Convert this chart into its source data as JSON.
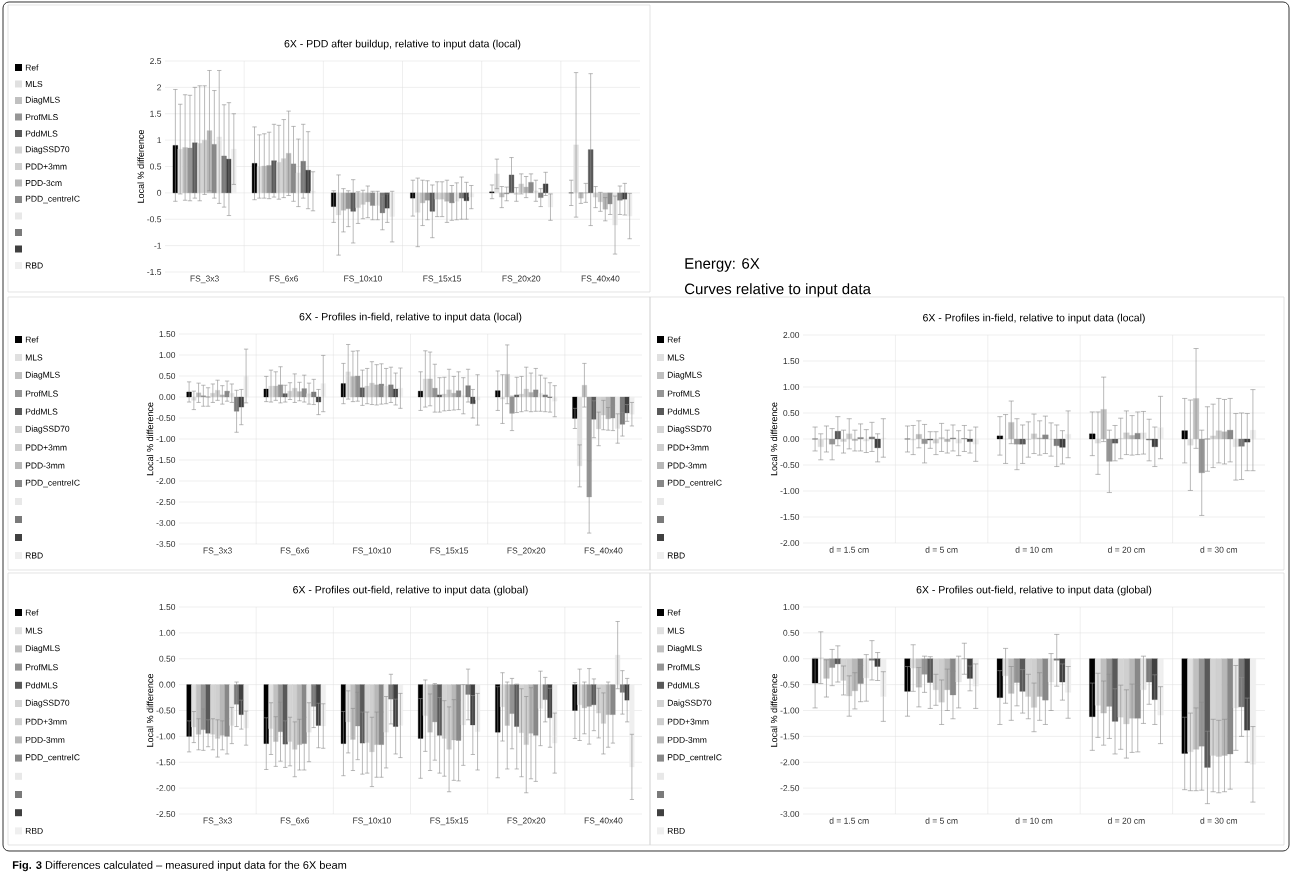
{
  "chart_data": [
    {
      "type": "bar",
      "title": "6X - PDD after buildup, relative to input data (local)",
      "ylabel": "Local % difference",
      "grid": true,
      "legend": "left",
      "categories": [
        "FS_3x3",
        "FS_6x6",
        "FS_10x10",
        "FS_15x15",
        "FS_20x20",
        "FS_40x40"
      ],
      "ylim": [
        -1.5,
        2.5
      ],
      "yticks": [
        -1.5,
        -1,
        -0.5,
        0,
        0.5,
        1,
        1.5,
        2,
        2.5
      ],
      "series": [
        {
          "name": "Ref",
          "color": "#000000",
          "values": [
            0.9,
            0.56,
            -0.26,
            -0.1,
            0.02,
            0.0
          ],
          "errors": [
            1.06,
            0.69,
            0.3,
            0.34,
            0.13,
            0.24
          ]
        },
        {
          "name": "MLS",
          "color": "#e0e0e0",
          "values": [
            0.83,
            0.5,
            -0.42,
            -0.37,
            0.36,
            0.91
          ],
          "errors": [
            0.85,
            0.6,
            0.76,
            0.65,
            0.28,
            1.37
          ]
        },
        {
          "name": "DiagMLS",
          "color": "#c0c0c0",
          "values": [
            0.86,
            0.51,
            -0.33,
            -0.19,
            -0.08,
            -0.1
          ],
          "errors": [
            1.0,
            0.61,
            0.41,
            0.43,
            0.2,
            0.1
          ]
        },
        {
          "name": "ProfMLS",
          "color": "#969696",
          "values": [
            0.85,
            0.52,
            -0.3,
            -0.14,
            -0.02,
            0.0
          ],
          "errors": [
            1.0,
            0.63,
            0.34,
            0.37,
            0.13,
            0.18
          ]
        },
        {
          "name": "PddMLS",
          "color": "#595959",
          "values": [
            0.95,
            0.61,
            -0.35,
            -0.35,
            0.34,
            0.82
          ],
          "errors": [
            1.05,
            0.69,
            0.6,
            0.5,
            0.33,
            1.44
          ]
        },
        {
          "name": "DiagSSD70",
          "color": "#d4d4d4",
          "values": [
            0.94,
            0.58,
            -0.28,
            -0.12,
            -0.03,
            -0.08
          ],
          "errors": [
            1.09,
            0.7,
            0.3,
            0.33,
            0.13,
            0.2
          ]
        },
        {
          "name": "PDD+3mm",
          "color": "#cfcfcf",
          "values": [
            1.0,
            0.65,
            -0.22,
            -0.12,
            0.17,
            -0.17
          ],
          "errors": [
            1.03,
            0.74,
            0.27,
            0.33,
            0.19,
            0.18
          ]
        },
        {
          "name": "PDD-3cm",
          "color": "#b8b8b8",
          "values": [
            1.18,
            0.75,
            -0.17,
            -0.16,
            0.11,
            -0.31
          ],
          "errors": [
            1.14,
            0.8,
            0.3,
            0.4,
            0.2,
            0.22
          ]
        },
        {
          "name": "PDD_centreIC",
          "color": "#888888",
          "values": [
            0.92,
            0.55,
            -0.24,
            -0.19,
            0.2,
            -0.21
          ],
          "errors": [
            1.02,
            0.71,
            0.27,
            0.33,
            0.16,
            0.2
          ]
        },
        {
          "color": "#e8e8e8",
          "values": [
            1.06,
            0.38,
            -0.24,
            -0.16,
            0.04,
            -0.61
          ],
          "errors": [
            1.26,
            0.64,
            0.27,
            0.35,
            0.2,
            0.55
          ]
        },
        {
          "color": "#7a7a7a",
          "values": [
            0.7,
            0.6,
            -0.38,
            -0.1,
            -0.09,
            -0.14
          ],
          "errors": [
            0.97,
            0.7,
            0.32,
            0.4,
            0.17,
            0.27
          ]
        },
        {
          "color": "#404040",
          "values": [
            0.64,
            0.43,
            -0.29,
            -0.15,
            0.17,
            -0.12
          ],
          "errors": [
            1.07,
            0.73,
            0.27,
            0.35,
            0.22,
            0.3
          ]
        },
        {
          "name": "RBD",
          "color": "#efefef",
          "values": [
            0.83,
            0.03,
            -0.45,
            -0.08,
            -0.27,
            -0.44
          ],
          "errors": [
            0.67,
            0.37,
            0.48,
            0.22,
            0.25,
            0.43
          ]
        }
      ]
    },
    {
      "type": "other",
      "title": "Energy: 6X",
      "subtitle": "Curves relative to input data",
      "annotations": [
        "**Fig. 3** Differences calculated – measured input data for the 6X beam"
      ]
    },
    {
      "type": "bar",
      "title": "6X - Profiles in-field, relative to input data (local)",
      "ylabel": "Local % difference",
      "grid": true,
      "legend": "left",
      "categories": [
        "FS_3x3",
        "FS_6x6",
        "FS_10x10",
        "FS_15x15",
        "FS_20x20",
        "FS_40x40"
      ],
      "ylim": [
        -3.5,
        1.5
      ],
      "yticks": [
        {
          "value": -3.5,
          "label": "-3.50"
        },
        {
          "value": -3,
          "label": "-3.00"
        },
        {
          "value": -2.5,
          "label": "-2.50"
        },
        {
          "value": -2,
          "label": "-2.00"
        },
        {
          "value": -1.5,
          "label": "-1.50"
        },
        {
          "value": -1,
          "label": "-1.00"
        },
        {
          "value": -0.5,
          "label": "-0.50"
        },
        {
          "value": 0,
          "label": "0.00"
        },
        {
          "value": 0.5,
          "label": "0.50"
        },
        {
          "value": 1,
          "label": "1.00"
        },
        {
          "value": 1.5,
          "label": "1.50"
        }
      ],
      "series": [
        {
          "name": "Ref",
          "color": "#000000",
          "values": [
            0.12,
            0.19,
            0.32,
            0.14,
            0.15,
            -0.51
          ],
          "errors": [
            0.24,
            0.3,
            0.48,
            0.46,
            0.47,
            0.24
          ]
        },
        {
          "name": "MLS",
          "color": "#e0e0e0",
          "values": [
            -0.08,
            0.26,
            0.6,
            0.43,
            -0.05,
            -1.64
          ],
          "errors": [
            0.22,
            0.38,
            0.65,
            0.67,
            0.58,
            0.5
          ]
        },
        {
          "name": "DiagMLS",
          "color": "#c0c0c0",
          "values": [
            0.1,
            0.26,
            0.49,
            0.43,
            0.54,
            0.28
          ],
          "errors": [
            0.23,
            0.34,
            0.6,
            0.64,
            0.7,
            0.52
          ]
        },
        {
          "name": "ProfMLS",
          "color": "#969696",
          "values": [
            0.03,
            0.29,
            0.5,
            0.21,
            -0.39,
            -2.38
          ],
          "errors": [
            0.25,
            0.43,
            0.6,
            0.57,
            0.41,
            0.86
          ]
        },
        {
          "name": "PddMLS",
          "color": "#595959",
          "values": [
            0.0,
            0.08,
            0.22,
            0.05,
            0.05,
            -0.53
          ],
          "errors": [
            0.22,
            0.2,
            0.42,
            0.41,
            0.42,
            0.44
          ]
        },
        {
          "name": "DiagSSD70",
          "color": "#d4d4d4",
          "values": [
            0.09,
            0.14,
            0.26,
            0.07,
            0.07,
            -0.76
          ],
          "errors": [
            0.22,
            0.2,
            0.42,
            0.4,
            0.42,
            0.4
          ]
        },
        {
          "name": "PDD+3mm",
          "color": "#cfcfcf",
          "values": [
            0.16,
            0.21,
            0.33,
            0.17,
            0.19,
            -0.43
          ],
          "errors": [
            0.24,
            0.34,
            0.51,
            0.49,
            0.52,
            0.35
          ]
        },
        {
          "name": "PDD-3mm",
          "color": "#b8b8b8",
          "values": [
            0.05,
            0.13,
            0.29,
            0.09,
            0.11,
            -0.52
          ],
          "errors": [
            0.22,
            0.22,
            0.48,
            0.4,
            0.46,
            0.27
          ]
        },
        {
          "name": "PDD_centreIC",
          "color": "#888888",
          "values": [
            0.14,
            0.2,
            0.31,
            0.15,
            0.17,
            -0.5
          ],
          "errors": [
            0.24,
            0.32,
            0.48,
            0.45,
            0.51,
            0.3
          ]
        },
        {
          "color": "#e8e8e8",
          "values": [
            0.09,
            0.08,
            0.26,
            0.03,
            0.09,
            -0.75
          ],
          "errors": [
            0.22,
            0.25,
            0.42,
            0.43,
            0.43,
            0.35
          ]
        },
        {
          "color": "#7a7a7a",
          "values": [
            -0.34,
            0.12,
            0.29,
            0.27,
            0.05,
            -0.65
          ],
          "errors": [
            0.5,
            0.3,
            0.42,
            0.39,
            0.4,
            0.28
          ]
        },
        {
          "color": "#404040",
          "values": [
            -0.24,
            -0.12,
            0.19,
            -0.16,
            -0.01,
            -0.38
          ],
          "errors": [
            0.42,
            0.3,
            0.38,
            0.34,
            0.35,
            0.2
          ]
        },
        {
          "name": "RBD",
          "color": "#efefef",
          "values": [
            0.5,
            0.32,
            0.21,
            -0.07,
            -0.1,
            -0.41
          ],
          "errors": [
            0.64,
            0.67,
            0.48,
            0.6,
            0.37,
            0.28
          ]
        }
      ]
    },
    {
      "type": "bar",
      "title": "6X - Profiles in-field, relative to input data (local)",
      "ylabel": "Local % difference",
      "grid": true,
      "legend": "left",
      "categories": [
        "d = 1.5 cm",
        "d = 5 cm",
        "d = 10 cm",
        "d = 20 cm",
        "d = 30 cm"
      ],
      "ylim": [
        -2,
        2
      ],
      "yticks": [
        {
          "value": -2,
          "label": "-2.00"
        },
        {
          "value": -1.5,
          "label": "-1.50"
        },
        {
          "value": -1,
          "label": "-1.00"
        },
        {
          "value": -0.5,
          "label": "-0.50"
        },
        {
          "value": 0,
          "label": "0.00"
        },
        {
          "value": 0.5,
          "label": "0.50"
        },
        {
          "value": 1,
          "label": "1.00"
        },
        {
          "value": 1.5,
          "label": "1.50"
        },
        {
          "value": 2,
          "label": "2.00"
        }
      ],
      "series": [
        {
          "name": "Ref",
          "color": "#000000",
          "values": [
            0.0,
            0.0,
            0.06,
            0.1,
            0.16
          ],
          "errors": [
            0.23,
            0.25,
            0.37,
            0.42,
            0.62
          ]
        },
        {
          "name": "MLS",
          "color": "#e0e0e0",
          "values": [
            -0.15,
            -0.02,
            0.0,
            -0.08,
            -0.12
          ],
          "errors": [
            0.25,
            0.28,
            0.47,
            0.6,
            0.87
          ]
        },
        {
          "name": "DiagMLS",
          "color": "#c0c0c0",
          "values": [
            0.0,
            0.09,
            0.32,
            0.57,
            0.78
          ],
          "errors": [
            0.25,
            0.26,
            0.41,
            0.62,
            0.96
          ]
        },
        {
          "name": "ProfMLS",
          "color": "#969696",
          "values": [
            -0.1,
            -0.09,
            -0.1,
            -0.43,
            -0.65
          ],
          "errors": [
            0.3,
            0.37,
            0.49,
            0.6,
            0.82
          ]
        },
        {
          "name": "PddMLS",
          "color": "#595959",
          "values": [
            0.15,
            -0.02,
            -0.1,
            -0.08,
            0.0
          ],
          "errors": [
            0.28,
            0.16,
            0.37,
            0.34,
            0.62
          ]
        },
        {
          "name": "DiagSSD70",
          "color": "#d4d4d4",
          "values": [
            -0.05,
            -0.08,
            -0.01,
            0.01,
            0.06
          ],
          "errors": [
            0.22,
            0.22,
            0.34,
            0.39,
            0.61
          ]
        },
        {
          "name": "PDD+3mm",
          "color": "#cfcfcf",
          "values": [
            0.1,
            0.03,
            0.1,
            0.12,
            0.16
          ],
          "errors": [
            0.29,
            0.27,
            0.38,
            0.42,
            0.62
          ]
        },
        {
          "name": "PDD-3mm",
          "color": "#b8b8b8",
          "values": [
            -0.03,
            -0.05,
            0.02,
            0.07,
            0.14
          ],
          "errors": [
            0.2,
            0.22,
            0.33,
            0.38,
            0.62
          ]
        },
        {
          "name": "PDD_centreIC",
          "color": "#888888",
          "values": [
            0.03,
            0.02,
            0.08,
            0.11,
            0.17
          ],
          "errors": [
            0.26,
            0.25,
            0.36,
            0.41,
            0.61
          ]
        },
        {
          "color": "#e8e8e8",
          "values": [
            -0.04,
            -0.08,
            -0.01,
            0.12,
            -0.15
          ],
          "errors": [
            0.22,
            0.24,
            0.32,
            0.41,
            0.64
          ]
        },
        {
          "color": "#7a7a7a",
          "values": [
            0.04,
            0.01,
            -0.13,
            -0.02,
            -0.14
          ],
          "errors": [
            0.28,
            0.25,
            0.4,
            0.4,
            0.64
          ]
        },
        {
          "color": "#404040",
          "values": [
            -0.17,
            -0.05,
            -0.16,
            -0.15,
            -0.06
          ],
          "errors": [
            0.27,
            0.22,
            0.32,
            0.38,
            0.55
          ]
        },
        {
          "name": "RBD",
          "color": "#efefef",
          "values": [
            0.02,
            -0.1,
            0.09,
            0.22,
            0.17
          ],
          "errors": [
            0.37,
            0.33,
            0.45,
            0.6,
            0.78
          ]
        }
      ]
    },
    {
      "type": "bar",
      "title": "6X - Profiles out-field, relative to input data (global)",
      "ylabel": "Local % difference",
      "grid": true,
      "legend": "left",
      "categories": [
        "FS_3x3",
        "FS_6x6",
        "FS_10x10",
        "FS_15x15",
        "FS_20x20",
        "FS_40x40"
      ],
      "ylim": [
        -2.5,
        1.5
      ],
      "yticks": [
        {
          "value": -2.5,
          "label": "-2.50"
        },
        {
          "value": -2,
          "label": "-2.00"
        },
        {
          "value": -1.5,
          "label": "-1.50"
        },
        {
          "value": -1,
          "label": "-1.00"
        },
        {
          "value": -0.5,
          "label": "-0.50"
        },
        {
          "value": 0,
          "label": "0.00"
        },
        {
          "value": 0.5,
          "label": "0.50"
        },
        {
          "value": 1,
          "label": "1.00"
        },
        {
          "value": 1.5,
          "label": "1.50"
        }
      ],
      "series": [
        {
          "name": "Ref",
          "color": "#000000",
          "values": [
            -1.0,
            -1.14,
            -1.14,
            -1.04,
            -0.92,
            -0.5
          ],
          "errors": [
            0.3,
            0.5,
            0.62,
            0.77,
            0.88,
            0.54
          ]
        },
        {
          "name": "MLS",
          "color": "#e0e0e0",
          "values": [
            -0.82,
            -0.85,
            -0.72,
            -0.6,
            -0.43,
            -0.39
          ],
          "errors": [
            0.3,
            0.5,
            0.6,
            0.69,
            0.66,
            0.69
          ]
        },
        {
          "name": "DiagMLS",
          "color": "#c0c0c0",
          "values": [
            -0.96,
            -1.1,
            -1.06,
            -0.92,
            -0.79,
            -0.45
          ],
          "errors": [
            0.3,
            0.48,
            0.6,
            0.74,
            0.84,
            0.5
          ]
        },
        {
          "name": "ProfMLS",
          "color": "#969696",
          "values": [
            -0.87,
            -0.91,
            -0.8,
            -0.72,
            -0.56,
            -0.42
          ],
          "errors": [
            0.4,
            0.57,
            0.65,
            0.74,
            0.68,
            0.73
          ]
        },
        {
          "name": "PddMLS",
          "color": "#595959",
          "values": [
            -0.94,
            -1.15,
            -1.13,
            -0.98,
            -0.81,
            -0.39
          ],
          "errors": [
            0.26,
            0.45,
            0.6,
            0.73,
            0.82,
            0.5
          ]
        },
        {
          "name": "DiagSSD70",
          "color": "#d4d4d4",
          "values": [
            -0.96,
            -1.1,
            -1.12,
            -1.04,
            -0.93,
            -0.55
          ],
          "errors": [
            0.3,
            0.47,
            0.59,
            0.73,
            0.85,
            0.48
          ]
        },
        {
          "name": "PDD+3mm",
          "color": "#cfcfcf",
          "values": [
            -1.04,
            -1.25,
            -1.3,
            -1.25,
            -1.16,
            -0.75
          ],
          "errors": [
            0.36,
            0.53,
            0.67,
            0.82,
            0.93,
            0.59
          ]
        },
        {
          "name": "PDD-3mm",
          "color": "#b8b8b8",
          "values": [
            -0.98,
            -1.16,
            -1.16,
            -1.07,
            -0.94,
            -0.58
          ],
          "errors": [
            0.28,
            0.49,
            0.63,
            0.78,
            0.88,
            0.63
          ]
        },
        {
          "name": "PDD_centreIC",
          "color": "#888888",
          "values": [
            -1.0,
            -1.14,
            -1.16,
            -1.08,
            -0.98,
            -0.58
          ],
          "errors": [
            0.34,
            0.51,
            0.63,
            0.78,
            0.89,
            0.55
          ]
        },
        {
          "color": "#e8e8e8",
          "values": [
            -0.79,
            -0.92,
            -0.92,
            -0.78,
            -0.46,
            0.57
          ],
          "errors": [
            0.35,
            0.57,
            0.69,
            0.78,
            0.72,
            0.65
          ]
        },
        {
          "color": "#7a7a7a",
          "values": [
            -0.38,
            -0.42,
            -0.28,
            -0.19,
            -0.29,
            -0.15
          ],
          "errors": [
            0.43,
            0.41,
            0.48,
            0.49,
            0.43,
            0.42
          ]
        },
        {
          "color": "#404040",
          "values": [
            -0.58,
            -0.79,
            -0.81,
            -0.78,
            -0.64,
            -0.3
          ],
          "errors": [
            0.28,
            0.43,
            0.53,
            0.57,
            0.57,
            0.42
          ]
        },
        {
          "name": "RBD",
          "color": "#efefef",
          "values": [
            -0.84,
            -0.8,
            -0.79,
            -0.91,
            -1.13,
            -1.59
          ],
          "errors": [
            0.33,
            0.43,
            0.62,
            0.74,
            0.58,
            0.63
          ]
        }
      ]
    },
    {
      "type": "bar",
      "title": "6X - Profiles out-field, relative to input data (global)",
      "ylabel": "Local % difference",
      "grid": true,
      "legend": "left",
      "categories": [
        "d = 1.5 cm",
        "d = 5 cm",
        "d = 10 cm",
        "d = 20 cm",
        "d = 30 cm"
      ],
      "ylim": [
        -3,
        1
      ],
      "yticks": [
        {
          "value": -3,
          "label": "-3.00"
        },
        {
          "value": -2.5,
          "label": "-2.50"
        },
        {
          "value": -2,
          "label": "-2.00"
        },
        {
          "value": -1.5,
          "label": "-1.50"
        },
        {
          "value": -1,
          "label": "-1.00"
        },
        {
          "value": -0.5,
          "label": "-0.50"
        },
        {
          "value": 0,
          "label": "0.00"
        },
        {
          "value": 0.5,
          "label": "0.50"
        },
        {
          "value": 1,
          "label": "1.00"
        }
      ],
      "series": [
        {
          "name": "Ref",
          "color": "#000000",
          "values": [
            -0.47,
            -0.63,
            -0.75,
            -1.12,
            -1.83
          ],
          "errors": [
            0.48,
            0.48,
            0.52,
            0.65,
            0.7
          ]
        },
        {
          "name": "MLS",
          "color": "#e0e0e0",
          "values": [
            0.02,
            -0.18,
            -0.33,
            -0.9,
            -1.8
          ],
          "errors": [
            0.5,
            0.45,
            0.53,
            0.62,
            0.75
          ]
        },
        {
          "name": "DiagMLS",
          "color": "#c0c0c0",
          "values": [
            -0.38,
            -0.55,
            -0.67,
            -1.05,
            -1.75
          ],
          "errors": [
            0.36,
            0.38,
            0.52,
            0.62,
            0.8
          ]
        },
        {
          "name": "ProfMLS",
          "color": "#969696",
          "values": [
            -0.17,
            -0.3,
            -0.46,
            -0.92,
            -1.69
          ],
          "errors": [
            0.35,
            0.35,
            0.45,
            0.62,
            0.85
          ]
        },
        {
          "name": "PddMLS",
          "color": "#595959",
          "values": [
            -0.1,
            -0.46,
            -0.63,
            -1.21,
            -2.1
          ],
          "errors": [
            0.35,
            0.5,
            0.42,
            0.63,
            0.7
          ]
        },
        {
          "name": "DaigSSD70",
          "color": "#d4d4d4",
          "values": [
            -0.42,
            -0.6,
            -0.73,
            -1.13,
            -1.87
          ],
          "errors": [
            0.28,
            0.3,
            0.43,
            0.62,
            0.7
          ]
        },
        {
          "name": "PDD+3mm",
          "color": "#cfcfcf",
          "values": [
            -0.72,
            -0.84,
            -0.94,
            -1.26,
            -1.89
          ],
          "errors": [
            0.39,
            0.43,
            0.47,
            0.66,
            0.7
          ]
        },
        {
          "name": "PDD-3mm",
          "color": "#b8b8b8",
          "values": [
            -0.62,
            -0.6,
            -0.73,
            -1.15,
            -1.87
          ],
          "errors": [
            0.35,
            0.4,
            0.46,
            0.66,
            0.7
          ]
        },
        {
          "name": "PDD_centreIC",
          "color": "#888888",
          "values": [
            -0.48,
            -0.7,
            -0.8,
            -1.15,
            -1.84
          ],
          "errors": [
            0.35,
            0.46,
            0.47,
            0.65,
            0.68
          ]
        },
        {
          "color": "#e8e8e8",
          "values": [
            -0.37,
            -0.45,
            -0.45,
            -0.6,
            -0.95
          ],
          "errors": [
            0.45,
            0.5,
            0.55,
            0.65,
            0.82
          ]
        },
        {
          "color": "#7a7a7a",
          "values": [
            -0.03,
            0.0,
            -0.03,
            -0.45,
            -0.93
          ],
          "errors": [
            0.38,
            0.3,
            0.5,
            0.43,
            0.57
          ]
        },
        {
          "color": "#404040",
          "values": [
            -0.15,
            -0.38,
            -0.45,
            -0.79,
            -1.38
          ],
          "errors": [
            0.27,
            0.24,
            0.35,
            0.48,
            0.62
          ]
        },
        {
          "name": "RBD",
          "color": "#efefef",
          "values": [
            -0.73,
            -0.53,
            -0.65,
            -1.09,
            -2.04
          ],
          "errors": [
            0.48,
            0.43,
            0.5,
            0.55,
            0.73
          ]
        }
      ]
    }
  ]
}
